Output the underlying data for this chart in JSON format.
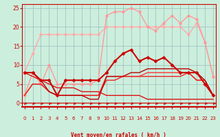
{
  "bg_color": "#cceedd",
  "grid_color": "#99bbbb",
  "xlabel": "Vent moyen/en rafales ( km/h )",
  "xlim": [
    -0.3,
    23.3
  ],
  "ylim": [
    -1,
    26
  ],
  "yticks": [
    0,
    5,
    10,
    15,
    20,
    25
  ],
  "xticks": [
    0,
    1,
    2,
    3,
    4,
    5,
    6,
    7,
    8,
    9,
    10,
    11,
    12,
    13,
    14,
    15,
    16,
    17,
    18,
    19,
    20,
    21,
    22,
    23
  ],
  "series": [
    {
      "x": [
        0,
        1,
        2,
        3,
        4,
        5,
        6,
        7,
        8,
        9,
        10,
        11,
        12,
        13,
        14,
        15,
        16,
        17,
        18,
        19,
        20,
        21,
        22,
        23
      ],
      "y": [
        8,
        13,
        18,
        18,
        18,
        18,
        18,
        18,
        18,
        18,
        20,
        20,
        20,
        20,
        20,
        20,
        20,
        20,
        20,
        20,
        18,
        21,
        16,
        7
      ],
      "color": "#ffaaaa",
      "marker": "o",
      "ms": 2.5,
      "lw": 1.0,
      "zorder": 2
    },
    {
      "x": [
        0,
        1,
        2,
        3,
        4,
        5,
        6,
        7,
        8,
        9,
        10,
        11,
        12,
        13,
        14,
        15,
        16,
        17,
        18,
        19,
        20,
        21,
        22,
        23
      ],
      "y": [
        2,
        8,
        5,
        10,
        5,
        5,
        5,
        5,
        5,
        6,
        23,
        24,
        24,
        25,
        24,
        20,
        19,
        21,
        23,
        21,
        23,
        22,
        16,
        7
      ],
      "color": "#ff9999",
      "marker": "o",
      "ms": 2.5,
      "lw": 1.0,
      "zorder": 2
    },
    {
      "x": [
        0,
        1,
        2,
        3,
        4,
        5,
        6,
        7,
        8,
        9,
        10,
        11,
        12,
        13,
        14,
        15,
        16,
        17,
        18,
        19,
        20,
        21,
        22,
        23
      ],
      "y": [
        8,
        8,
        6,
        6,
        2,
        6,
        6,
        6,
        6,
        6,
        8,
        11,
        13,
        14,
        11,
        12,
        11,
        12,
        10,
        8,
        8,
        8,
        5,
        2
      ],
      "color": "#cc0000",
      "marker": "D",
      "ms": 2.5,
      "lw": 1.5,
      "zorder": 5
    },
    {
      "x": [
        0,
        1,
        2,
        3,
        4,
        5,
        6,
        7,
        8,
        9,
        10,
        11,
        12,
        13,
        14,
        15,
        16,
        17,
        18,
        19,
        20,
        21,
        22,
        23
      ],
      "y": [
        2,
        5,
        5,
        3,
        2,
        2,
        2,
        2,
        2,
        2,
        7,
        7,
        7,
        7,
        7,
        8,
        8,
        8,
        8,
        8,
        8,
        6,
        6,
        2
      ],
      "color": "#ff3333",
      "marker": null,
      "ms": 0,
      "lw": 1.0,
      "zorder": 3
    },
    {
      "x": [
        0,
        1,
        2,
        3,
        4,
        5,
        6,
        7,
        8,
        9,
        10,
        11,
        12,
        13,
        14,
        15,
        16,
        17,
        18,
        19,
        20,
        21,
        22,
        23
      ],
      "y": [
        2,
        5,
        5,
        3,
        2,
        2,
        2,
        2,
        2,
        2,
        6,
        6,
        7,
        7,
        7,
        7,
        7,
        7,
        7,
        7,
        8,
        6,
        6,
        2
      ],
      "color": "#ee2222",
      "marker": null,
      "ms": 0,
      "lw": 1.0,
      "zorder": 3
    },
    {
      "x": [
        0,
        1,
        2,
        3,
        4,
        5,
        6,
        7,
        8,
        9,
        10,
        11,
        12,
        13,
        14,
        15,
        16,
        17,
        18,
        19,
        20,
        21,
        22,
        23
      ],
      "y": [
        8,
        8,
        6,
        3,
        2,
        2,
        2,
        2,
        1,
        1,
        7,
        7,
        7,
        8,
        8,
        9,
        9,
        9,
        9,
        9,
        9,
        8,
        6,
        2
      ],
      "color": "#bb0000",
      "marker": null,
      "ms": 0,
      "lw": 1.0,
      "zorder": 3
    },
    {
      "x": [
        0,
        1,
        2,
        3,
        4,
        5,
        6,
        7,
        8,
        9,
        10,
        11,
        12,
        13,
        14,
        15,
        16,
        17,
        18,
        19,
        20,
        21,
        22,
        23
      ],
      "y": [
        8,
        7,
        6,
        5,
        4,
        4,
        4,
        3,
        3,
        3,
        2,
        2,
        2,
        2,
        2,
        1,
        1,
        1,
        1,
        1,
        1,
        1,
        1,
        1
      ],
      "color": "#dd1111",
      "marker": null,
      "ms": 0,
      "lw": 1.0,
      "zorder": 3
    }
  ]
}
